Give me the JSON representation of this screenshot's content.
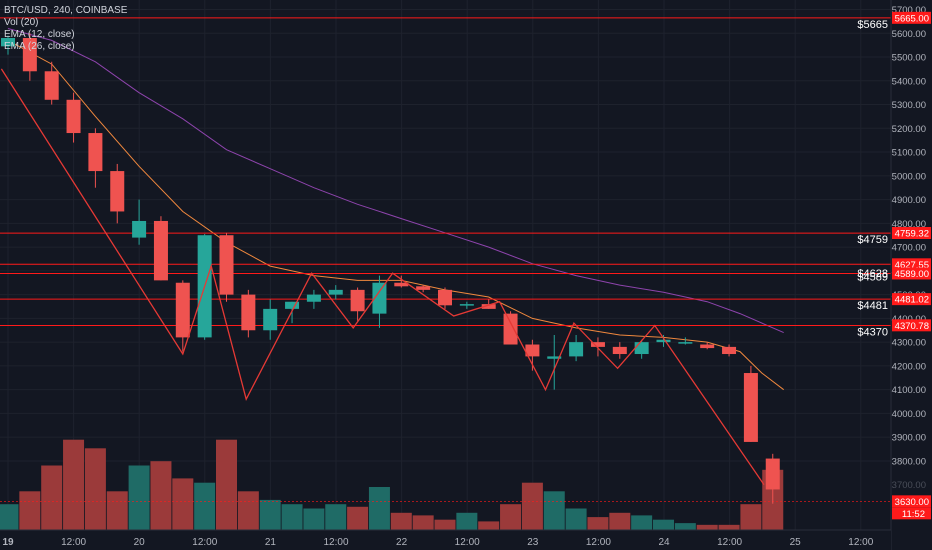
{
  "header": {
    "symbol": "BTC/USD, 240, COINBASE",
    "indicators": [
      "Vol (20)",
      "EMA (12, close)",
      "EMA (26, close)"
    ]
  },
  "colors": {
    "background": "#131722",
    "up": "#26a69a",
    "down": "#ef5350",
    "volume_up": "#1f6b66",
    "volume_down": "#9b3a3a",
    "level_line": "#ff1a1a",
    "zigzag": "#e53935",
    "ema12": "#f0883e",
    "ema26": "#8e44ad",
    "grid": "#1e222d",
    "axis_text": "#b2b5be"
  },
  "chart_data": {
    "type": "candlestick",
    "title": "BTC/USD, 240, COINBASE",
    "y_axis_ticks": [
      "5700.00",
      "5600.00",
      "5500.00",
      "5400.00",
      "5300.00",
      "5200.00",
      "5100.00",
      "5000.00",
      "4900.00",
      "4800.00",
      "4700.00",
      "4600.00",
      "4500.00",
      "4400.00",
      "4300.00",
      "4200.00",
      "4100.00",
      "4000.00",
      "3900.00",
      "3800.00"
    ],
    "y_axis_ticks_faded": [
      "3700.00"
    ],
    "ylim": [
      3600,
      5740
    ],
    "x_axis_labels": [
      "19",
      "12:00",
      "20",
      "12:00",
      "21",
      "12:00",
      "22",
      "12:00",
      "23",
      "12:00",
      "24",
      "12:00",
      "25",
      "12:00"
    ],
    "price_labels": [
      {
        "text": "5665.00",
        "value": 5665
      },
      {
        "text": "4759.32",
        "value": 4759.32
      },
      {
        "text": "4627.55",
        "value": 4627.55
      },
      {
        "text": "4589.00",
        "value": 4589
      },
      {
        "text": "4481.02",
        "value": 4481.02
      },
      {
        "text": "4370.78",
        "value": 4370.78
      },
      {
        "text": "3630.00",
        "value": 3630
      }
    ],
    "time_label": "11:52",
    "horizontal_levels": [
      {
        "label": "$5665",
        "value": 5665
      },
      {
        "label": "$4759",
        "value": 4759
      },
      {
        "label": "$4628",
        "value": 4628
      },
      {
        "label": "$4589",
        "value": 4589
      },
      {
        "label": "$4481",
        "value": 4481
      },
      {
        "label": "$4370",
        "value": 4370
      }
    ],
    "candles": [
      {
        "o": 5545,
        "h": 5590,
        "l": 5510,
        "c": 5580
      },
      {
        "o": 5580,
        "h": 5600,
        "l": 5400,
        "c": 5440
      },
      {
        "o": 5440,
        "h": 5480,
        "l": 5300,
        "c": 5320
      },
      {
        "o": 5320,
        "h": 5350,
        "l": 5140,
        "c": 5180
      },
      {
        "o": 5180,
        "h": 5200,
        "l": 4950,
        "c": 5020
      },
      {
        "o": 5020,
        "h": 5050,
        "l": 4800,
        "c": 4850
      },
      {
        "o": 4740,
        "h": 4900,
        "l": 4710,
        "c": 4810
      },
      {
        "o": 4810,
        "h": 4830,
        "l": 4560,
        "c": 4560
      },
      {
        "o": 4550,
        "h": 4560,
        "l": 4260,
        "c": 4320
      },
      {
        "o": 4320,
        "h": 4755,
        "l": 4310,
        "c": 4750
      },
      {
        "o": 4750,
        "h": 4760,
        "l": 4470,
        "c": 4500
      },
      {
        "o": 4500,
        "h": 4520,
        "l": 4320,
        "c": 4350
      },
      {
        "o": 4350,
        "h": 4480,
        "l": 4310,
        "c": 4440
      },
      {
        "o": 4440,
        "h": 4470,
        "l": 4380,
        "c": 4470
      },
      {
        "o": 4470,
        "h": 4520,
        "l": 4440,
        "c": 4500
      },
      {
        "o": 4500,
        "h": 4540,
        "l": 4480,
        "c": 4520
      },
      {
        "o": 4520,
        "h": 4530,
        "l": 4390,
        "c": 4430
      },
      {
        "o": 4420,
        "h": 4580,
        "l": 4360,
        "c": 4550
      },
      {
        "o": 4550,
        "h": 4580,
        "l": 4530,
        "c": 4535
      },
      {
        "o": 4535,
        "h": 4540,
        "l": 4510,
        "c": 4520
      },
      {
        "o": 4520,
        "h": 4530,
        "l": 4440,
        "c": 4455
      },
      {
        "o": 4455,
        "h": 4470,
        "l": 4440,
        "c": 4460
      },
      {
        "o": 4460,
        "h": 4480,
        "l": 4440,
        "c": 4440
      },
      {
        "o": 4420,
        "h": 4430,
        "l": 4310,
        "c": 4290
      },
      {
        "o": 4290,
        "h": 4310,
        "l": 4180,
        "c": 4240
      },
      {
        "o": 4230,
        "h": 4330,
        "l": 4100,
        "c": 4240
      },
      {
        "o": 4240,
        "h": 4330,
        "l": 4220,
        "c": 4300
      },
      {
        "o": 4300,
        "h": 4320,
        "l": 4240,
        "c": 4280
      },
      {
        "o": 4280,
        "h": 4300,
        "l": 4230,
        "c": 4250
      },
      {
        "o": 4250,
        "h": 4310,
        "l": 4230,
        "c": 4300
      },
      {
        "o": 4300,
        "h": 4330,
        "l": 4280,
        "c": 4310
      },
      {
        "o": 4300,
        "h": 4320,
        "l": 4290,
        "c": 4300
      },
      {
        "o": 4290,
        "h": 4300,
        "l": 4270,
        "c": 4275
      },
      {
        "o": 4280,
        "h": 4290,
        "l": 4240,
        "c": 4250
      },
      {
        "o": 4170,
        "h": 4200,
        "l": 3880,
        "c": 3880
      },
      {
        "o": 3810,
        "h": 3830,
        "l": 3620,
        "c": 3680
      }
    ],
    "volume": [
      30,
      45,
      75,
      105,
      95,
      45,
      75,
      80,
      60,
      55,
      105,
      45,
      35,
      30,
      25,
      30,
      27,
      50,
      20,
      17,
      12,
      20,
      10,
      30,
      55,
      45,
      25,
      15,
      20,
      17,
      12,
      8,
      6,
      6,
      30,
      70
    ],
    "zigzag": [
      {
        "i": -0.3,
        "v": 5450
      },
      {
        "i": 8,
        "v": 4250
      },
      {
        "i": 9.3,
        "v": 4620
      },
      {
        "i": 10.9,
        "v": 4060
      },
      {
        "i": 13.9,
        "v": 4590
      },
      {
        "i": 15.8,
        "v": 4360
      },
      {
        "i": 17.6,
        "v": 4590
      },
      {
        "i": 20.4,
        "v": 4410
      },
      {
        "i": 22.5,
        "v": 4470
      },
      {
        "i": 24.6,
        "v": 4100
      },
      {
        "i": 25.9,
        "v": 4380
      },
      {
        "i": 27.9,
        "v": 4190
      },
      {
        "i": 29.6,
        "v": 4370
      },
      {
        "i": 34.6,
        "v": 3700
      }
    ],
    "ema12": [
      {
        "i": 0,
        "v": 5570
      },
      {
        "i": 2,
        "v": 5470
      },
      {
        "i": 4,
        "v": 5250
      },
      {
        "i": 6,
        "v": 5040
      },
      {
        "i": 8,
        "v": 4850
      },
      {
        "i": 10,
        "v": 4720
      },
      {
        "i": 12,
        "v": 4620
      },
      {
        "i": 14,
        "v": 4580
      },
      {
        "i": 16,
        "v": 4560
      },
      {
        "i": 18,
        "v": 4560
      },
      {
        "i": 20,
        "v": 4520
      },
      {
        "i": 22,
        "v": 4490
      },
      {
        "i": 24,
        "v": 4400
      },
      {
        "i": 26,
        "v": 4360
      },
      {
        "i": 28,
        "v": 4330
      },
      {
        "i": 30,
        "v": 4320
      },
      {
        "i": 32,
        "v": 4300
      },
      {
        "i": 33.5,
        "v": 4260
      },
      {
        "i": 34.5,
        "v": 4170
      },
      {
        "i": 35.5,
        "v": 4100
      }
    ],
    "ema26": [
      {
        "i": 0,
        "v": 5620
      },
      {
        "i": 2,
        "v": 5570
      },
      {
        "i": 4,
        "v": 5480
      },
      {
        "i": 6,
        "v": 5350
      },
      {
        "i": 8,
        "v": 5240
      },
      {
        "i": 10,
        "v": 5110
      },
      {
        "i": 12,
        "v": 5030
      },
      {
        "i": 14,
        "v": 4950
      },
      {
        "i": 16,
        "v": 4880
      },
      {
        "i": 18,
        "v": 4820
      },
      {
        "i": 20,
        "v": 4760
      },
      {
        "i": 22,
        "v": 4700
      },
      {
        "i": 24,
        "v": 4630
      },
      {
        "i": 26,
        "v": 4580
      },
      {
        "i": 28,
        "v": 4540
      },
      {
        "i": 30,
        "v": 4510
      },
      {
        "i": 32,
        "v": 4470
      },
      {
        "i": 33.5,
        "v": 4420
      },
      {
        "i": 35.5,
        "v": 4340
      }
    ]
  }
}
